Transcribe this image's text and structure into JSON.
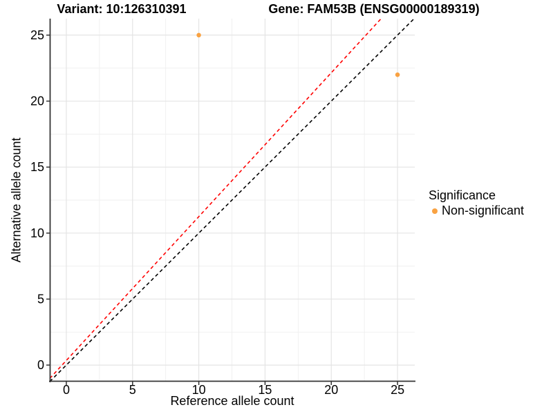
{
  "titles": {
    "variant": "Variant: 10:126310391",
    "gene": "Gene: FAM53B (ENSG00000189319)"
  },
  "legend": {
    "title": "Significance",
    "items": [
      {
        "label": "Non-significant",
        "color": "#F9A242"
      }
    ]
  },
  "colors": {
    "point_orange": "#F9A242",
    "identity_line": "#000000",
    "expected_line": "#FF0000",
    "grid_major": "#E4E4E4",
    "grid_minor": "#EFEFEF",
    "axis": "#333333",
    "text": "#000000",
    "background": "#FFFFFF"
  },
  "chart_data": {
    "type": "scatter",
    "title": "",
    "xlabel": "Reference allele count",
    "ylabel": "Alternative allele count",
    "xlim": [
      -1.25,
      26.3
    ],
    "ylim": [
      -1.25,
      26.25
    ],
    "x_ticks": [
      0,
      5,
      10,
      15,
      20,
      25
    ],
    "y_ticks": [
      0,
      5,
      10,
      15,
      20,
      25
    ],
    "x_minor_ticks": [
      2.5,
      7.5,
      12.5,
      17.5,
      22.5
    ],
    "y_minor_ticks": [
      2.5,
      7.5,
      12.5,
      17.5,
      22.5
    ],
    "grid": true,
    "legend_position": "right",
    "series": [
      {
        "name": "Non-significant",
        "color": "#F9A242",
        "points": [
          {
            "x": 10,
            "y": 25
          },
          {
            "x": 25,
            "y": 22
          }
        ]
      }
    ],
    "lines": [
      {
        "name": "expected-line",
        "color": "#FF0000",
        "style": "dashed",
        "slope": 1.09,
        "intercept": 0.35
      },
      {
        "name": "identity-line",
        "color": "#000000",
        "style": "dashed",
        "slope": 1.0,
        "intercept": 0.0
      }
    ]
  }
}
